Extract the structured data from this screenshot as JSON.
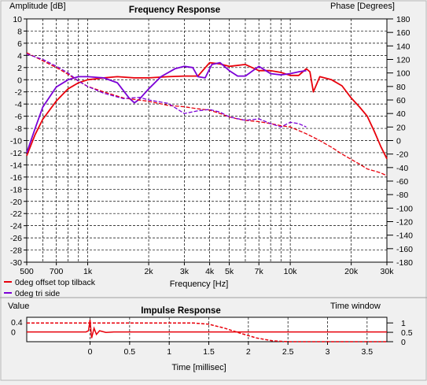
{
  "chart_data": [
    {
      "type": "line",
      "title": "Frequency Response",
      "ylabel_left": "Amplitude [dB]",
      "ylabel_right": "Phase [Degrees]",
      "xlabel": "Frequency [Hz]",
      "x_scale": "log",
      "xlim": [
        500,
        30000
      ],
      "ylim_left": [
        -30,
        10
      ],
      "ylim_right": [
        -180,
        180
      ],
      "x_ticks": [
        {
          "value": 500,
          "label": "500"
        },
        {
          "value": 700,
          "label": "700"
        },
        {
          "value": 1000,
          "label": "1k"
        },
        {
          "value": 2000,
          "label": "2k"
        },
        {
          "value": 3000,
          "label": "3k"
        },
        {
          "value": 4000,
          "label": "4k"
        },
        {
          "value": 5000,
          "label": "5k"
        },
        {
          "value": 7000,
          "label": "7k"
        },
        {
          "value": 10000,
          "label": "10k"
        },
        {
          "value": 20000,
          "label": "20k"
        },
        {
          "value": 30000,
          "label": "30k"
        }
      ],
      "left_ticks": [
        "10",
        "8",
        "6",
        "4",
        "2",
        "0",
        "-2",
        "-4",
        "-6",
        "-8",
        "-10",
        "-12",
        "-14",
        "-16",
        "-18",
        "-20",
        "-22",
        "-24",
        "-26",
        "-28",
        "-30"
      ],
      "right_ticks": [
        "180",
        "160",
        "140",
        "120",
        "100",
        "80",
        "60",
        "40",
        "20",
        "0",
        "-20",
        "-40",
        "-60",
        "-80",
        "-100",
        "-120",
        "-140",
        "-160",
        "-180"
      ],
      "legend": [
        "0deg offset top tilback",
        "0deg tri side"
      ],
      "legend_position": "bottom-left",
      "series": [
        {
          "name": "0deg offset top tilback",
          "kind": "magnitude",
          "color": "#e8000b",
          "x": [
            500,
            550,
            600,
            700,
            800,
            900,
            1000,
            1200,
            1400,
            1700,
            2000,
            2500,
            3000,
            3500,
            4000,
            4500,
            5000,
            6000,
            7000,
            8000,
            9000,
            10000,
            11000,
            12000,
            12500,
            13000,
            14000,
            16000,
            18000,
            20000,
            22000,
            24000,
            26000,
            28000,
            30000
          ],
          "y": [
            -12.5,
            -9,
            -6.5,
            -3.5,
            -1.5,
            -0.5,
            0,
            0.3,
            0.5,
            0.3,
            0.3,
            0.5,
            0.6,
            0.6,
            2.8,
            2.6,
            2.2,
            2.5,
            1.5,
            1.5,
            1.2,
            0.7,
            0.7,
            1.8,
            1.3,
            -2,
            0.5,
            0,
            -1,
            -3,
            -4.5,
            -6,
            -8.5,
            -11,
            -13
          ]
        },
        {
          "name": "0deg tri side",
          "kind": "magnitude",
          "color": "#7b00d6",
          "x": [
            500,
            550,
            600,
            700,
            800,
            900,
            1000,
            1200,
            1400,
            1600,
            1700,
            1800,
            2000,
            2300,
            2700,
            3000,
            3300,
            3500,
            3800,
            4100,
            4500,
            5000,
            5500,
            6000,
            7000,
            8000,
            9000,
            10000,
            11000,
            12000
          ],
          "y": [
            -12,
            -8,
            -4.5,
            -1.2,
            0,
            0.5,
            0.5,
            0.3,
            -0.5,
            -3,
            -3.8,
            -3.2,
            -1.5,
            0.5,
            1.8,
            2.2,
            2,
            0.5,
            0.3,
            2.5,
            2.8,
            1.5,
            0.6,
            0.6,
            2.2,
            1,
            0.8,
            1,
            1.3,
            1.5
          ]
        },
        {
          "name": "0deg offset top tilback",
          "kind": "phase",
          "color": "#e8000b",
          "x": [
            500,
            600,
            700,
            800,
            900,
            1000,
            1200,
            1500,
            2000,
            2500,
            3000,
            3500,
            4000,
            4500,
            5000,
            5500,
            6000,
            7000,
            8000,
            9000,
            10000,
            12000,
            14000,
            16000,
            18000,
            20000,
            22000,
            24000,
            26000,
            28000,
            30000
          ],
          "y": [
            130,
            118,
            108,
            98,
            88,
            80,
            72,
            63,
            58,
            52,
            50,
            47,
            45,
            40,
            35,
            32,
            30,
            28,
            25,
            22,
            20,
            10,
            0,
            -10,
            -20,
            -28,
            -35,
            -42,
            -45,
            -48,
            -52
          ]
        },
        {
          "name": "0deg tri side",
          "kind": "phase",
          "color": "#7b00d6",
          "x": [
            500,
            600,
            700,
            800,
            900,
            1000,
            1200,
            1500,
            1800,
            2000,
            2500,
            3000,
            3500,
            4000,
            4500,
            5000,
            6000,
            7000,
            8000,
            9000,
            10000,
            11000,
            12000
          ],
          "y": [
            128,
            120,
            110,
            100,
            88,
            80,
            70,
            62,
            64,
            60,
            55,
            40,
            44,
            46,
            42,
            35,
            30,
            32,
            25,
            20,
            27,
            25,
            20
          ]
        }
      ]
    },
    {
      "type": "line",
      "title": "Impulse Response",
      "ylabel_left": "Value",
      "ylabel_right": "Time window",
      "xlabel": "Time [millisec]",
      "xlim": [
        -0.8,
        3.75
      ],
      "ylim_left": [
        -0.4,
        0.6
      ],
      "ylim_right": [
        0,
        1.3
      ],
      "x_ticks": [
        "0",
        "0.5",
        "1",
        "1.5",
        "2",
        "2.5",
        "3",
        "3.5"
      ],
      "left_ticks": [
        "0.4",
        "0"
      ],
      "right_ticks": [
        "1",
        "0.5",
        "0"
      ],
      "series": [
        {
          "name": "impulse",
          "color": "#e8000b",
          "x": [
            -0.8,
            -0.05,
            -0.02,
            0,
            0.02,
            0.05,
            0.08,
            0.12,
            0.2,
            0.3,
            3.75
          ],
          "y": [
            0,
            0,
            0.05,
            0.5,
            -0.25,
            0.15,
            -0.1,
            0.05,
            -0.02,
            0,
            0
          ]
        },
        {
          "name": "time window",
          "color": "#e8000b",
          "style": "dashed",
          "x": [
            -0.8,
            1.3,
            1.5,
            1.7,
            1.9,
            2.1,
            2.3,
            2.5,
            3.75
          ],
          "y": [
            1,
            1,
            0.93,
            0.72,
            0.45,
            0.2,
            0.05,
            0,
            0
          ]
        }
      ]
    }
  ]
}
